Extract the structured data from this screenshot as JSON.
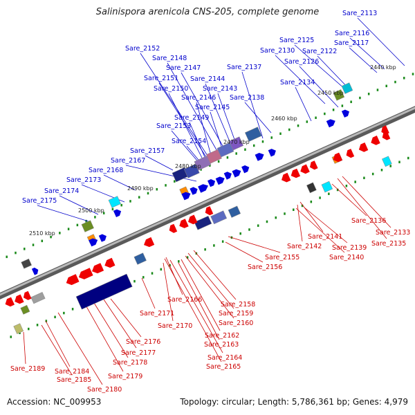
{
  "title": "Salinispora arenicola CNS-205, complete genome",
  "footer": {
    "accession": "Accession: NC_009953",
    "topology": "Topology: circular; Length: 5,786,361 bp; Genes: 4,979"
  },
  "colors": {
    "forward_label": "#0000cc",
    "reverse_label": "#cc0000",
    "forward_gene": "#0000dd",
    "reverse_gene": "#ee0000",
    "backbone": "#7a7a7a",
    "tick": "#1a8a1a"
  },
  "ticks": [
    {
      "label": "2440 kbp"
    },
    {
      "label": "2450 kbp"
    },
    {
      "label": "2460 kbp"
    },
    {
      "label": "2470 kbp"
    },
    {
      "label": "2480 kbp"
    },
    {
      "label": "2490 kbp"
    },
    {
      "label": "2500 kbp"
    },
    {
      "label": "2510 kbp"
    }
  ],
  "forward_labels": [
    "Sare_2113",
    "Sare_2116",
    "Sare_2117",
    "Sare_2125",
    "Sare_2122",
    "Sare_2130",
    "Sare_2126",
    "Sare_2134",
    "Sare_2137",
    "Sare_2138",
    "Sare_2152",
    "Sare_2148",
    "Sare_2147",
    "Sare_2151",
    "Sare_2144",
    "Sare_2150",
    "Sare_2143",
    "Sare_2146",
    "Sare_2145",
    "Sare_2149",
    "Sare_2153",
    "Sare_2154",
    "Sare_2157",
    "Sare_2167",
    "Sare_2168",
    "Sare_2173",
    "Sare_2174",
    "Sare_2175"
  ],
  "reverse_labels": [
    "Sare_2136",
    "Sare_2133",
    "Sare_2141",
    "Sare_2135",
    "Sare_2142",
    "Sare_2139",
    "Sare_2155",
    "Sare_2140",
    "Sare_2156",
    "Sare_2166",
    "Sare_2158",
    "Sare_2171",
    "Sare_2159",
    "Sare_2170",
    "Sare_2160",
    "Sare_2162",
    "Sare_2176",
    "Sare_2163",
    "Sare_2177",
    "Sare_2164",
    "Sare_2178",
    "Sare_2165",
    "Sare_2189",
    "Sare_2184",
    "Sare_2179",
    "Sare_2185",
    "Sare_2180"
  ]
}
